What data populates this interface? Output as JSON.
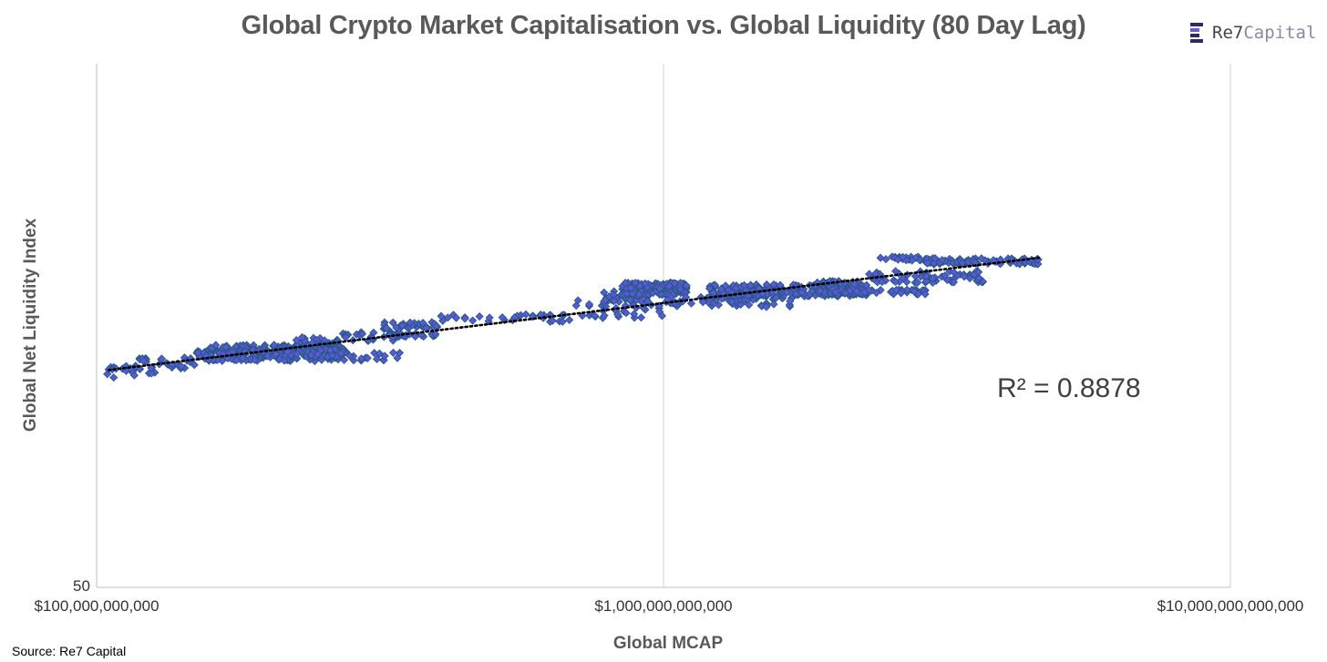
{
  "chart_data": {
    "type": "scatter",
    "title": "Global Crypto Market Capitalisation vs. Global Liquidity (80 Day Lag)",
    "xlabel": "Global MCAP",
    "ylabel": "Global Net Liquidity Index",
    "x_scale": "log",
    "xlim": [
      100000000000,
      10000000000000
    ],
    "x_ticks": [
      "$100,000,000,000",
      "$1,000,000,000,000",
      "$10,000,000,000,000"
    ],
    "y_scale": "log",
    "ylim": [
      50,
      200
    ],
    "y_ticks": [
      "50"
    ],
    "grid": "x major gridlines only",
    "marker": "diamond",
    "marker_color": "#5a58d6",
    "marker_edge_color": "#1f5a78",
    "trendline": {
      "style": "dotted",
      "color": "#000000",
      "annotation": "R² = 0.8878"
    },
    "clusters": [
      {
        "x_range": [
          104000000000,
          127000000000
        ],
        "y_range": [
          87,
          90
        ],
        "n": 25
      },
      {
        "x_range": [
          118000000000,
          150000000000
        ],
        "y_range": [
          89,
          92
        ],
        "n": 30
      },
      {
        "x_range": [
          157000000000,
          268000000000
        ],
        "y_range": [
          91,
          95
        ],
        "n": 190
      },
      {
        "x_range": [
          150000000000,
          350000000000
        ],
        "y_range": [
          91,
          93.6
        ],
        "n": 80
      },
      {
        "x_range": [
          225000000000,
          268000000000
        ],
        "y_range": [
          94,
          97
        ],
        "n": 45
      },
      {
        "x_range": [
          215000000000,
          275000000000
        ],
        "y_range": [
          92,
          94
        ],
        "n": 70
      },
      {
        "x_range": [
          270000000000,
          340000000000
        ],
        "y_range": [
          96,
          98.5
        ],
        "n": 25
      },
      {
        "x_range": [
          320000000000,
          400000000000
        ],
        "y_range": [
          97,
          98
        ],
        "n": 25
      },
      {
        "x_range": [
          320000000000,
          400000000000
        ],
        "y_range": [
          99,
          101
        ],
        "n": 35
      },
      {
        "x_range": [
          400000000000,
          700000000000
        ],
        "y_range": [
          101,
          103
        ],
        "n": 35
      },
      {
        "x_range": [
          700000000000,
          1000000000000
        ],
        "y_range": [
          102,
          107
        ],
        "n": 35
      },
      {
        "x_range": [
          780000000000,
          950000000000
        ],
        "y_range": [
          106.5,
          109.5
        ],
        "n": 45
      },
      {
        "x_range": [
          840000000000,
          1100000000000
        ],
        "y_range": [
          108.5,
          112
        ],
        "n": 170
      },
      {
        "x_range": [
          1000000000000,
          1700000000000
        ],
        "y_range": [
          105,
          108.5
        ],
        "n": 70
      },
      {
        "x_range": [
          1200000000000,
          2300000000000
        ],
        "y_range": [
          108,
          111.5
        ],
        "n": 200
      },
      {
        "x_range": [
          1850000000000,
          2200000000000
        ],
        "y_range": [
          108.5,
          112.5
        ],
        "n": 90
      },
      {
        "x_range": [
          2000000000000,
          2900000000000
        ],
        "y_range": [
          108.5,
          110
        ],
        "n": 50
      },
      {
        "x_range": [
          2300000000000,
          3700000000000
        ],
        "y_range": [
          112,
          115.5
        ],
        "n": 70
      },
      {
        "x_range": [
          2400000000000,
          2900000000000
        ],
        "y_range": [
          118.8,
          120
        ],
        "n": 25
      },
      {
        "x_range": [
          2900000000000,
          4600000000000
        ],
        "y_range": [
          117.5,
          119.5
        ],
        "n": 80
      }
    ]
  },
  "r2_label": "R² = 0.8878",
  "source": "Source: Re7 Capital",
  "logo": {
    "name_main": "Re7",
    "name_alt": "Capital"
  }
}
